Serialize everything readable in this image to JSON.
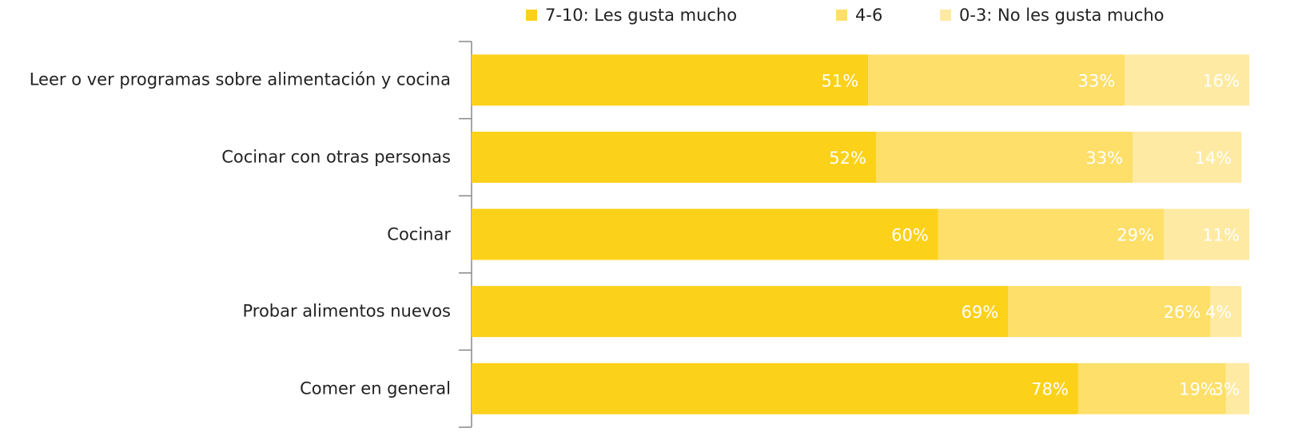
{
  "chart_data": {
    "type": "stacked-bar-horizontal",
    "categories": [
      "Leer o ver programas sobre alimentación y cocina",
      "Cocinar con otras personas",
      "Cocinar",
      "Probar alimentos nuevos",
      "Comer en general"
    ],
    "series": [
      {
        "name": "7-10: Les gusta mucho",
        "color": "#fcd11a",
        "values": [
          51,
          52,
          60,
          69,
          78
        ],
        "value_labels": [
          "51%",
          "52%",
          "60%",
          "69%",
          "78%"
        ]
      },
      {
        "name": "4-6",
        "color": "#fddf69",
        "values": [
          33,
          33,
          29,
          26,
          19
        ],
        "value_labels": [
          "33%",
          "33%",
          "29%",
          "26%",
          "19%"
        ]
      },
      {
        "name": "0-3: No les gusta mucho",
        "color": "#feeaa3",
        "values": [
          16,
          14,
          11,
          4,
          3
        ],
        "value_labels": [
          "16%",
          "14%",
          "11%",
          "4%",
          "3%"
        ]
      }
    ],
    "xlim": [
      0,
      100
    ],
    "legend": "top"
  }
}
